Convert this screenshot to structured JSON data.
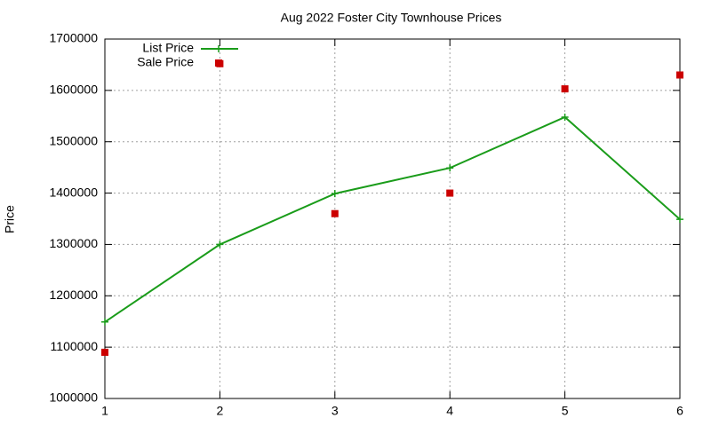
{
  "chart_data": {
    "type": "line",
    "title": "Aug 2022 Foster City Townhouse Prices",
    "ylabel": "Price",
    "x": [
      1,
      2,
      3,
      4,
      5,
      6
    ],
    "series": [
      {
        "name": "List Price",
        "color": "#1a9c1a",
        "style": "linespoints",
        "values": [
          1149000,
          1300000,
          1399000,
          1449000,
          1548000,
          1349000
        ]
      },
      {
        "name": "Sale Price",
        "color": "#cc0000",
        "style": "points",
        "values": [
          1090000,
          1652000,
          1360000,
          1400000,
          1603000,
          1630000
        ]
      }
    ],
    "xlim": [
      1,
      6
    ],
    "xticks": [
      1,
      2,
      3,
      4,
      5,
      6
    ],
    "ylim": [
      1000000,
      1700000
    ],
    "yticks": [
      1000000,
      1100000,
      1200000,
      1300000,
      1400000,
      1500000,
      1600000,
      1700000
    ],
    "grid": true,
    "legend": "top-left"
  }
}
